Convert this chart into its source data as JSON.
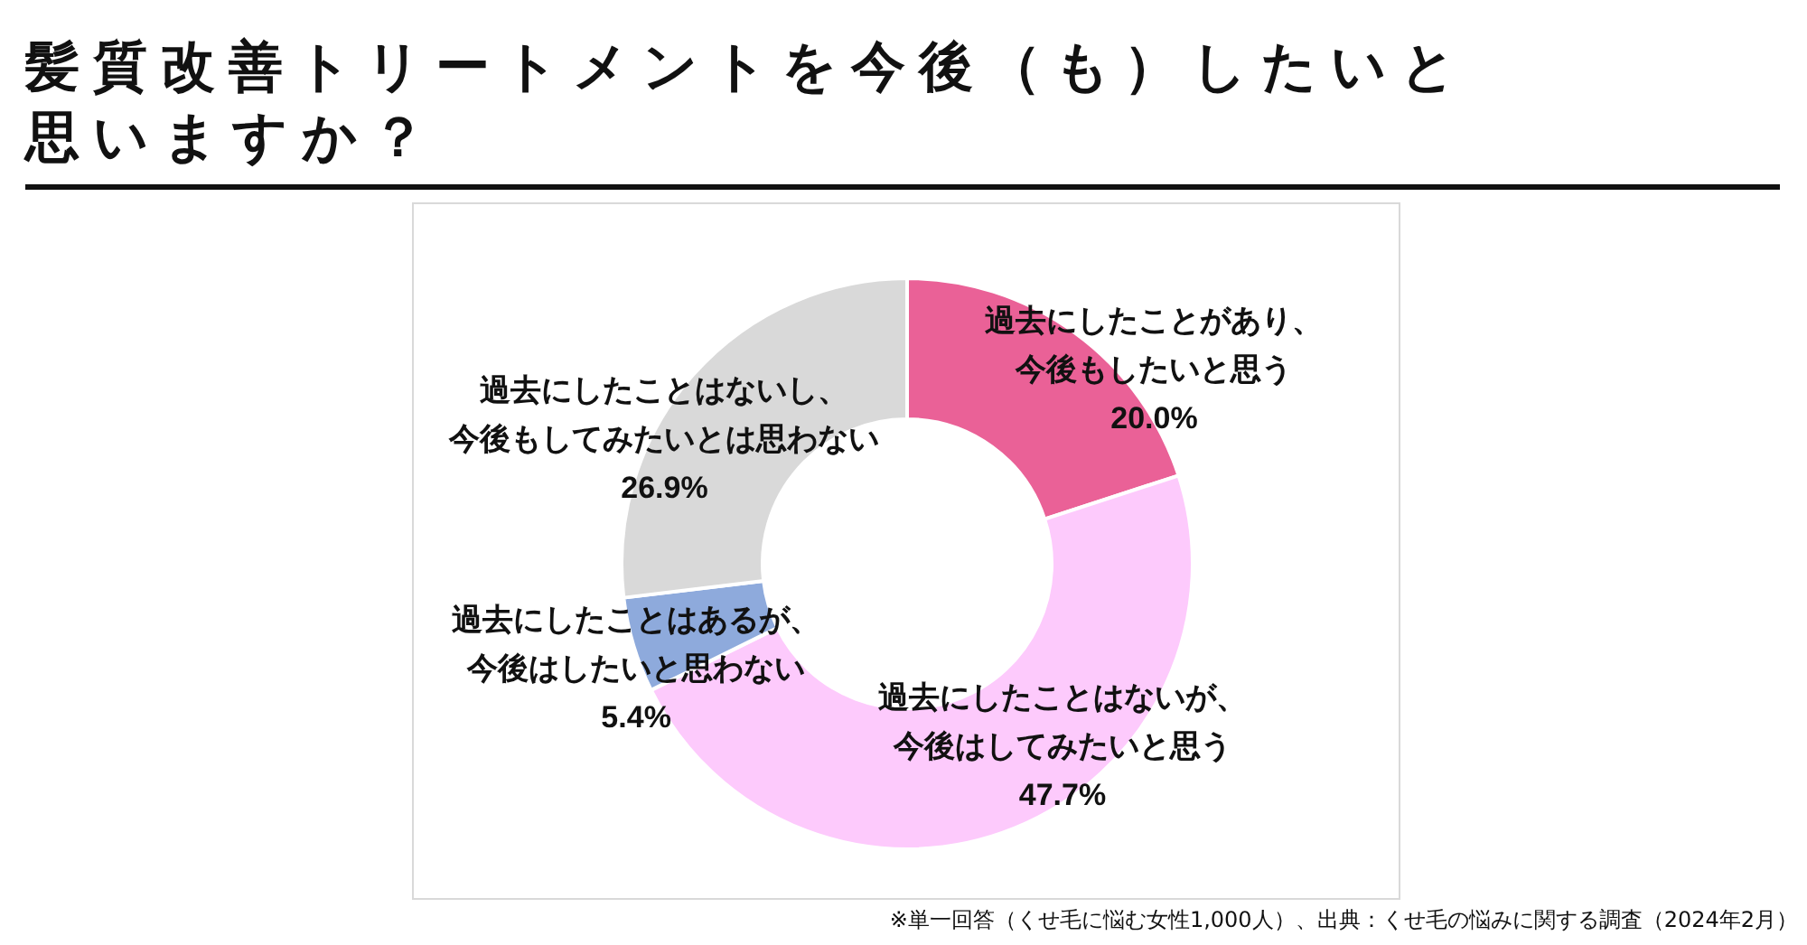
{
  "chart_data": {
    "type": "donut",
    "title": "髪質改善トリートメントを今後（も）したいと思いますか？",
    "categories": [
      "過去にしたことがあり、今後もしたいと思う",
      "過去にしたことはないが、今後はしてみたいと思う",
      "過去にしたことはあるが、今後はしたいと思わない",
      "過去にしたことはないし、今後もしてみたいとは思わない"
    ],
    "values": [
      20.0,
      47.7,
      5.4,
      26.9
    ],
    "value_labels": [
      "20.0%",
      "47.7%",
      "5.4%",
      "26.9%"
    ],
    "colors": [
      "#ea6197",
      "#fdcafc",
      "#8eaadc",
      "#d9d9d9"
    ],
    "annotations": [
      "※単一回答（くせ毛に悩む女性1,000人）、出典：くせ毛の悩みに関する調査（2024年2月）"
    ]
  }
}
